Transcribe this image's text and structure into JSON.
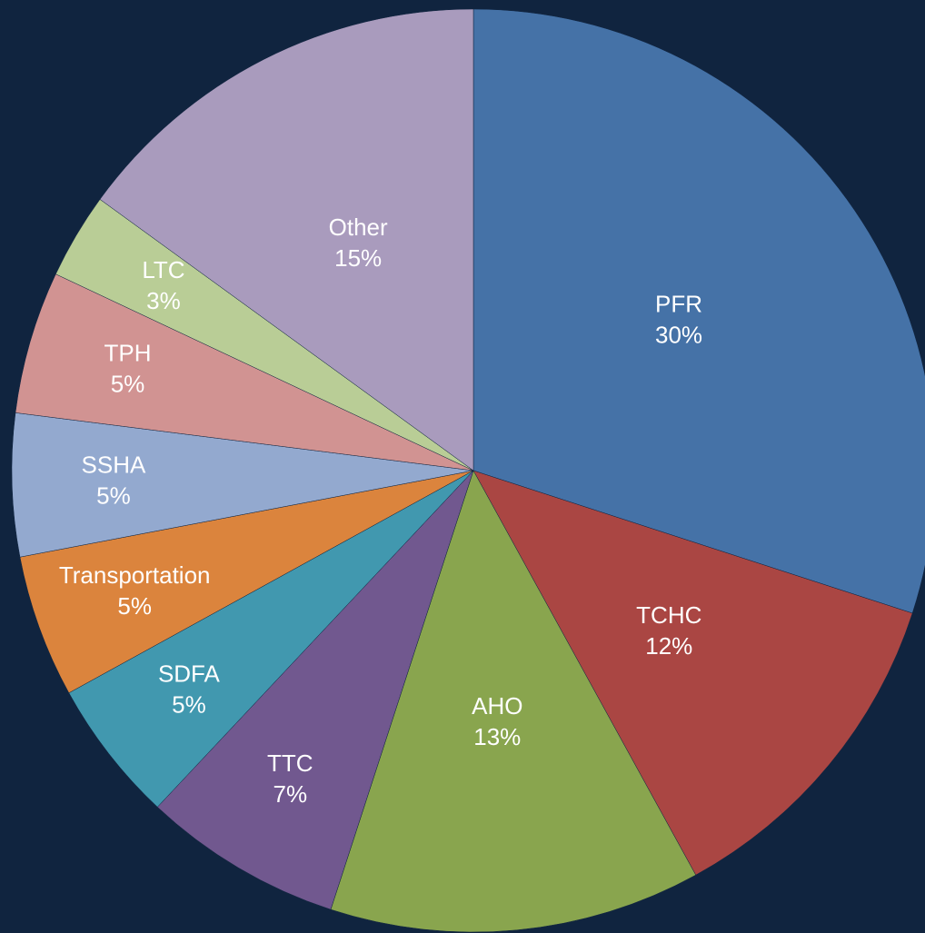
{
  "chart_data": {
    "type": "pie",
    "categories": [
      "PFR",
      "TCHC",
      "AHO",
      "TTC",
      "SDFA",
      "Transportation",
      "SSHA",
      "TPH",
      "LTC",
      "Other"
    ],
    "values": [
      30,
      12,
      13,
      7,
      5,
      5,
      5,
      5,
      3,
      15
    ],
    "value_labels": [
      "30%",
      "12%",
      "13%",
      "7%",
      "5%",
      "5%",
      "5%",
      "5%",
      "3%",
      "15%"
    ],
    "colors": [
      "#4572a7",
      "#aa4643",
      "#89a54e",
      "#71588f",
      "#4198af",
      "#db843d",
      "#93a9cf",
      "#d19392",
      "#b9cd96",
      "#a99bbd"
    ]
  }
}
